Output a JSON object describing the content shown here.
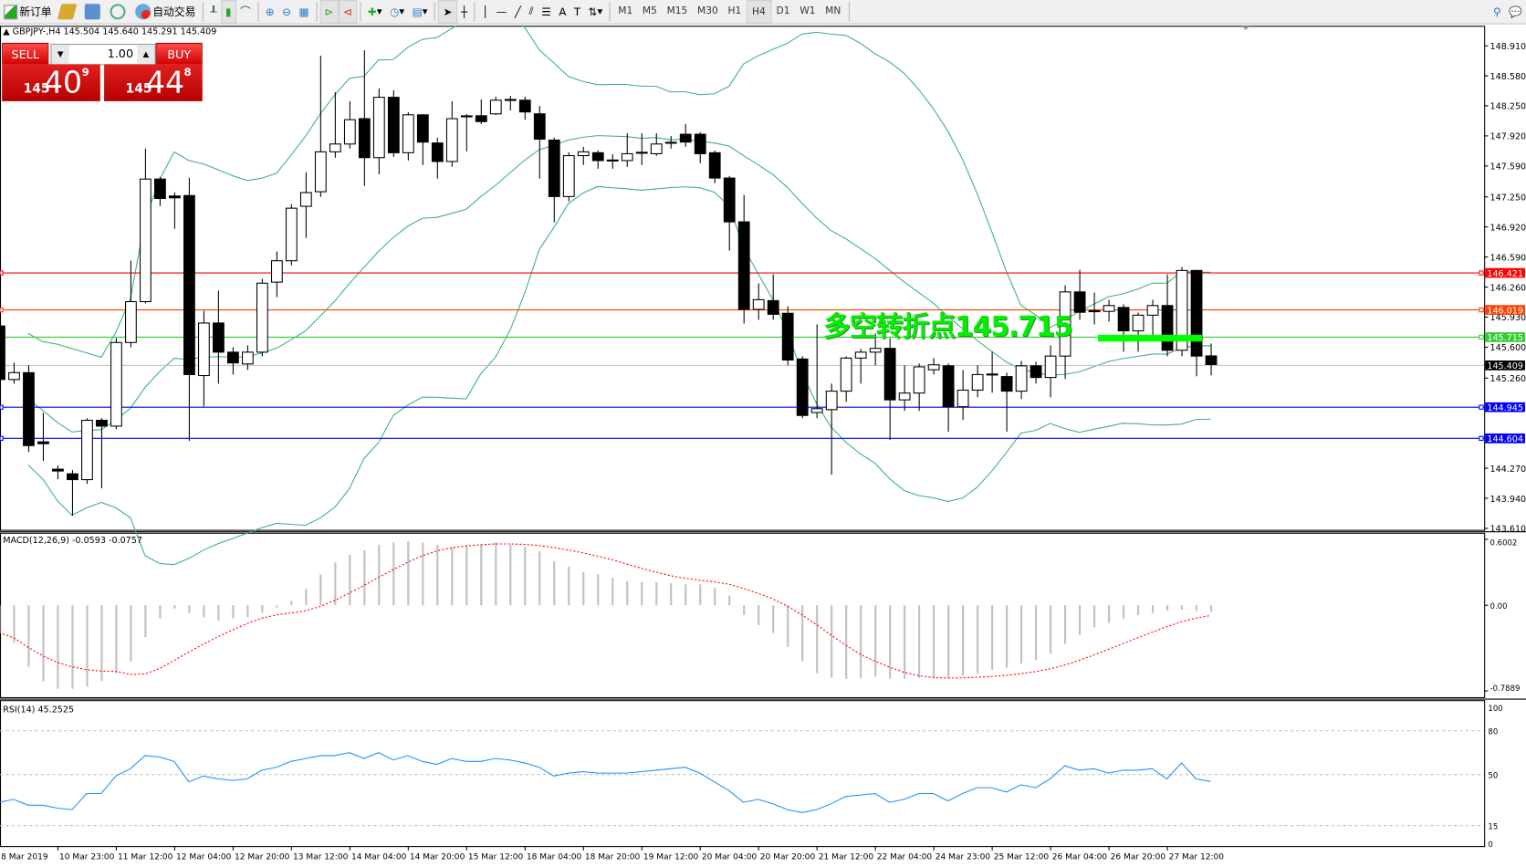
{
  "toolbar": {
    "new_order": "新订单",
    "auto_trading": "自动交易",
    "timeframes": [
      "M1",
      "M5",
      "M15",
      "M30",
      "H1",
      "H4",
      "D1",
      "W1",
      "MN"
    ],
    "active_timeframe": "H4"
  },
  "chart_header": "GBPJPY-,H4  145.504 145.640 145.291 145.409",
  "trade_panel": {
    "sell_label": "SELL",
    "buy_label": "BUY",
    "lot": "1.00",
    "sell_price": {
      "big": "145",
      "main": "40",
      "sup": "9"
    },
    "buy_price": {
      "big": "145",
      "main": "44",
      "sup": "8"
    }
  },
  "annotation": {
    "text": "多空转折点145.715",
    "color": "#00ff00",
    "bar_price": 145.715
  },
  "chart_data": [
    {
      "type": "candlestick",
      "symbol": "GBPJPY-",
      "timeframe": "H4",
      "ylim": [
        143.61,
        148.91
      ],
      "price_ticks": [
        "148.910",
        "148.580",
        "148.250",
        "147.920",
        "147.590",
        "147.250",
        "146.920",
        "146.590",
        "146.260",
        "145.930",
        "145.600",
        "145.260",
        "144.270",
        "143.940",
        "143.610"
      ],
      "levels": [
        {
          "value": "146.421",
          "color": "#ff0000"
        },
        {
          "value": "146.019",
          "color": "#ff4000"
        },
        {
          "value": "145.715",
          "color": "#32cd32"
        },
        {
          "value": "145.409",
          "color": "#000000",
          "line": "#c0c0c0"
        },
        {
          "value": "144.945",
          "color": "#0000ff"
        },
        {
          "value": "144.604",
          "color": "#0000ff"
        }
      ],
      "bollinger": {
        "period": 20,
        "deviation": 2,
        "color": "#3cb371"
      },
      "ohlc": [
        [
          145.833,
          145.86,
          145.2,
          145.245
        ],
        [
          145.245,
          145.43,
          145.2,
          145.32
        ],
        [
          145.32,
          145.4,
          144.45,
          144.519
        ],
        [
          144.56,
          144.88,
          144.35,
          144.54
        ],
        [
          144.26,
          144.3,
          144.15,
          144.24
        ],
        [
          144.209,
          144.25,
          143.75,
          144.145
        ],
        [
          144.145,
          144.82,
          144.1,
          144.797
        ],
        [
          144.797,
          144.82,
          144.05,
          144.733
        ],
        [
          144.733,
          145.7,
          144.7,
          145.651
        ],
        [
          145.651,
          146.55,
          145.6,
          146.1
        ],
        [
          146.1,
          147.78,
          146.08,
          147.446
        ],
        [
          147.446,
          147.47,
          147.15,
          147.233
        ],
        [
          147.26,
          147.3,
          146.9,
          147.24
        ],
        [
          147.265,
          147.46,
          144.57,
          145.299
        ],
        [
          145.288,
          146.0,
          144.95,
          145.865
        ],
        [
          145.865,
          146.22,
          145.2,
          145.545
        ],
        [
          145.545,
          145.6,
          145.3,
          145.427
        ],
        [
          145.416,
          145.62,
          145.35,
          145.545
        ],
        [
          145.545,
          146.35,
          145.5,
          146.303
        ],
        [
          146.314,
          146.65,
          146.15,
          146.549
        ],
        [
          146.549,
          147.17,
          146.5,
          147.126
        ],
        [
          147.147,
          147.52,
          146.8,
          147.297
        ],
        [
          147.307,
          148.8,
          147.25,
          147.745
        ],
        [
          147.745,
          148.4,
          147.68,
          147.831
        ],
        [
          147.831,
          148.3,
          147.78,
          148.098
        ],
        [
          148.109,
          148.86,
          147.37,
          147.681
        ],
        [
          147.681,
          148.44,
          147.5,
          148.344
        ],
        [
          148.344,
          148.42,
          147.69,
          147.735
        ],
        [
          147.735,
          148.18,
          147.65,
          148.151
        ],
        [
          148.151,
          148.16,
          147.6,
          147.852
        ],
        [
          147.842,
          147.9,
          147.45,
          147.639
        ],
        [
          147.639,
          148.3,
          147.58,
          148.109
        ],
        [
          148.13,
          148.16,
          147.75,
          148.14
        ],
        [
          148.141,
          148.32,
          148.05,
          148.077
        ],
        [
          148.162,
          148.35,
          148.15,
          148.312
        ],
        [
          148.31,
          148.36,
          148.2,
          148.32
        ],
        [
          148.312,
          148.35,
          148.1,
          148.183
        ],
        [
          148.162,
          148.25,
          147.45,
          147.884
        ],
        [
          147.874,
          147.9,
          146.97,
          147.254
        ],
        [
          147.254,
          147.74,
          147.2,
          147.703
        ],
        [
          147.703,
          147.8,
          147.6,
          147.745
        ],
        [
          147.735,
          147.76,
          147.56,
          147.649
        ],
        [
          147.655,
          147.72,
          147.56,
          147.645
        ],
        [
          147.649,
          147.95,
          147.58,
          147.724
        ],
        [
          147.73,
          147.95,
          147.6,
          147.74
        ],
        [
          147.724,
          147.95,
          147.7,
          147.831
        ],
        [
          147.84,
          147.92,
          147.78,
          147.85
        ],
        [
          147.938,
          148.05,
          147.8,
          147.852
        ],
        [
          147.938,
          147.96,
          147.62,
          147.724
        ],
        [
          147.735,
          147.76,
          147.4,
          147.457
        ],
        [
          147.457,
          147.48,
          146.66,
          146.976
        ],
        [
          146.976,
          147.27,
          145.86,
          146.015
        ],
        [
          146.015,
          146.3,
          145.9,
          146.121
        ],
        [
          146.111,
          146.4,
          145.9,
          145.961
        ],
        [
          145.972,
          146.05,
          145.4,
          145.459
        ],
        [
          145.47,
          145.5,
          144.82,
          144.85
        ],
        [
          144.882,
          145.85,
          144.82,
          144.925
        ],
        [
          144.914,
          145.2,
          144.2,
          145.117
        ],
        [
          145.117,
          145.5,
          145.0,
          145.48
        ],
        [
          145.48,
          145.58,
          145.2,
          145.545
        ],
        [
          145.545,
          145.75,
          145.4,
          145.587
        ],
        [
          145.587,
          145.7,
          144.58,
          145.021
        ],
        [
          145.021,
          145.4,
          144.9,
          145.096
        ],
        [
          145.096,
          145.42,
          144.9,
          145.384
        ],
        [
          145.352,
          145.48,
          145.3,
          145.406
        ],
        [
          145.395,
          145.42,
          144.67,
          144.946
        ],
        [
          144.946,
          145.35,
          144.8,
          145.128
        ],
        [
          145.128,
          145.4,
          145.05,
          145.299
        ],
        [
          145.295,
          145.55,
          145.1,
          145.305
        ],
        [
          145.277,
          145.32,
          144.67,
          145.117
        ],
        [
          145.117,
          145.45,
          145.03,
          145.395
        ],
        [
          145.395,
          145.44,
          145.2,
          145.267
        ],
        [
          145.267,
          145.62,
          145.05,
          145.502
        ],
        [
          145.502,
          146.28,
          145.25,
          146.207
        ],
        [
          146.207,
          146.45,
          145.9,
          145.983
        ],
        [
          145.99,
          146.2,
          145.85,
          146.0
        ],
        [
          145.993,
          146.12,
          145.88,
          146.057
        ],
        [
          146.036,
          146.07,
          145.55,
          145.779
        ],
        [
          145.779,
          145.98,
          145.55,
          145.951
        ],
        [
          145.951,
          146.12,
          145.7,
          146.057
        ],
        [
          146.057,
          146.4,
          145.5,
          145.566
        ],
        [
          145.566,
          146.48,
          145.5,
          146.442
        ],
        [
          146.442,
          146.45,
          145.28,
          145.502
        ],
        [
          145.504,
          145.64,
          145.291,
          145.409
        ]
      ],
      "time_labels": [
        "8 Mar 2019",
        "10 Mar 23:00",
        "11 Mar 12:00",
        "12 Mar 04:00",
        "12 Mar 20:00",
        "13 Mar 12:00",
        "14 Mar 04:00",
        "14 Mar 20:00",
        "15 Mar 12:00",
        "18 Mar 04:00",
        "18 Mar 20:00",
        "19 Mar 12:00",
        "20 Mar 04:00",
        "20 Mar 20:00",
        "21 Mar 12:00",
        "22 Mar 04:00",
        "24 Mar 23:00",
        "25 Mar 12:00",
        "26 Mar 04:00",
        "26 Mar 20:00",
        "27 Mar 12:00"
      ]
    },
    {
      "type": "bar",
      "title": "MACD(12,26,9) -0.0593 -0.0757",
      "ylim": [
        -0.7889,
        0.6002
      ],
      "ticks": [
        "0.6002",
        "0.00",
        "-0.7889"
      ],
      "histogram_color": "#c0c0c0",
      "signal_color": "#ff0000",
      "histogram": [
        -0.25,
        -0.34,
        -0.56,
        -0.69,
        -0.76,
        -0.76,
        -0.74,
        -0.69,
        -0.62,
        -0.51,
        -0.29,
        -0.12,
        -0.03,
        -0.07,
        -0.11,
        -0.14,
        -0.12,
        -0.11,
        -0.07,
        -0.02,
        0.04,
        0.15,
        0.28,
        0.39,
        0.46,
        0.5,
        0.55,
        0.57,
        0.58,
        0.57,
        0.55,
        0.53,
        0.55,
        0.55,
        0.57,
        0.55,
        0.53,
        0.49,
        0.4,
        0.35,
        0.3,
        0.28,
        0.25,
        0.22,
        0.21,
        0.21,
        0.2,
        0.19,
        0.19,
        0.16,
        0.09,
        -0.09,
        -0.18,
        -0.25,
        -0.38,
        -0.51,
        -0.62,
        -0.66,
        -0.67,
        -0.66,
        -0.65,
        -0.67,
        -0.67,
        -0.66,
        -0.66,
        -0.66,
        -0.64,
        -0.62,
        -0.59,
        -0.57,
        -0.53,
        -0.5,
        -0.44,
        -0.35,
        -0.27,
        -0.2,
        -0.16,
        -0.12,
        -0.09,
        -0.07,
        -0.05,
        -0.04,
        -0.05,
        -0.0593
      ]
    },
    {
      "type": "line",
      "title": "RSI(14) 45.2525",
      "ylim": [
        0,
        100
      ],
      "ticks": [
        "100",
        "80",
        "50",
        "15",
        "0"
      ],
      "levels": [
        80,
        50,
        15
      ],
      "color": "#1e90ff",
      "values": [
        31,
        33,
        29,
        29,
        27,
        26,
        37,
        37,
        49,
        54,
        63,
        62,
        59,
        45,
        49,
        47,
        46,
        47,
        53,
        55,
        59,
        61,
        63,
        63,
        65,
        61,
        65,
        60,
        63,
        59,
        57,
        61,
        59,
        59,
        61,
        60,
        58,
        55,
        49,
        51,
        52,
        51,
        51,
        51,
        52,
        53,
        54,
        55,
        51,
        45,
        39,
        31,
        33,
        30,
        26,
        24,
        26,
        30,
        35,
        36,
        37,
        31,
        33,
        37,
        37,
        32,
        37,
        41,
        41,
        38,
        43,
        41,
        47,
        56,
        53,
        54,
        51,
        53,
        53,
        54,
        47,
        58,
        47,
        45.2525
      ]
    }
  ]
}
